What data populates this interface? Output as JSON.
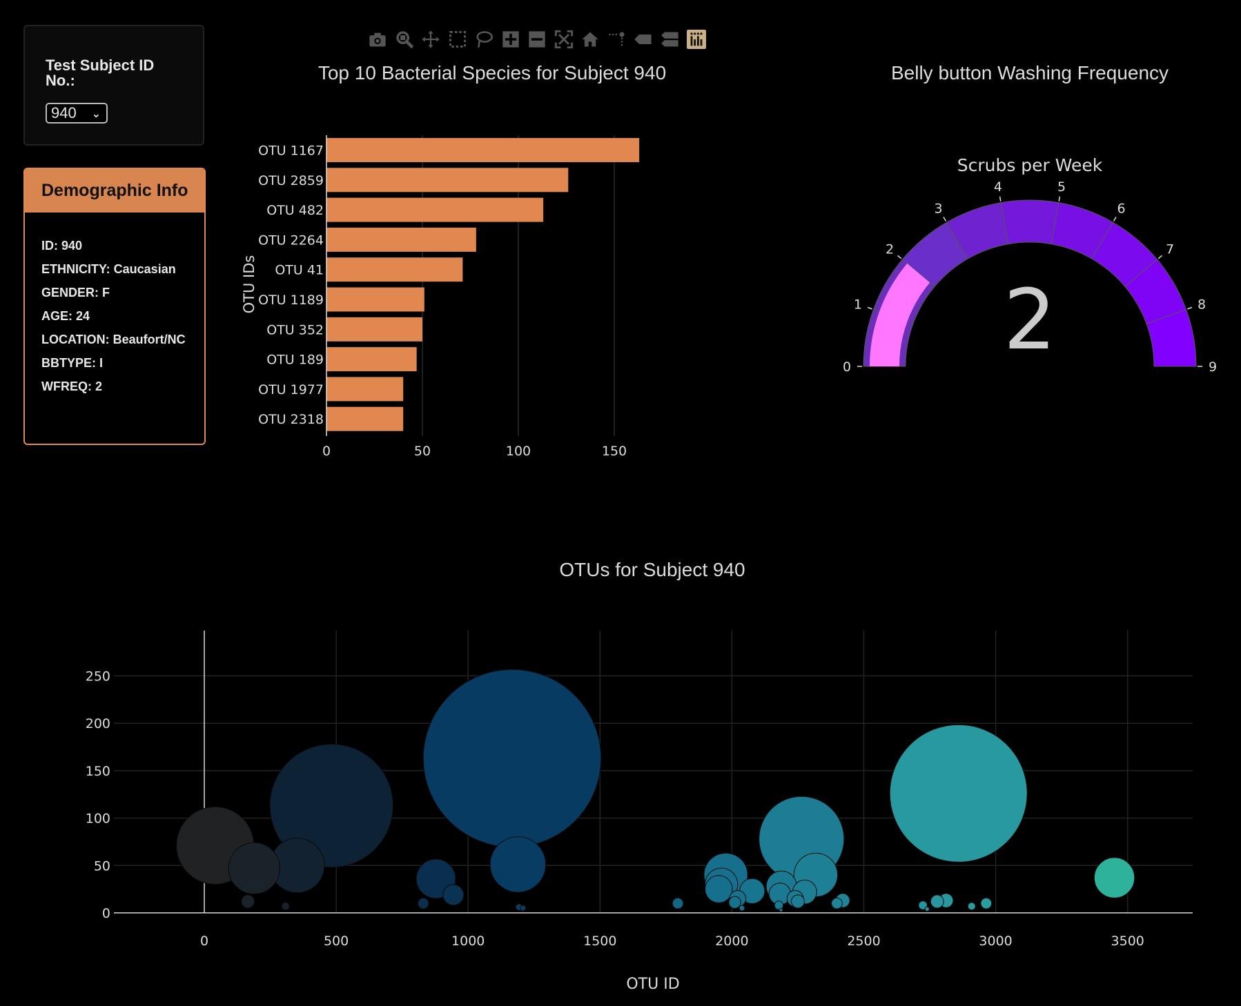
{
  "selector": {
    "label": "Test Subject ID No.:",
    "selected_value": "940"
  },
  "demographic": {
    "title": "Demographic Info",
    "items": [
      "ID: 940",
      "ETHNICITY: Caucasian",
      "GENDER: F",
      "AGE: 24",
      "LOCATION: Beaufort/NC",
      "BBTYPE: I",
      "WFREQ: 2"
    ]
  },
  "toolbar": {
    "icons": [
      "camera-icon",
      "zoom-icon",
      "pan-icon",
      "box-select-icon",
      "lasso-icon",
      "zoom-in-icon",
      "zoom-out-icon",
      "autoscale-icon",
      "home-icon",
      "spike-lines-icon",
      "hover-closest-icon",
      "hover-compare-icon",
      "plotly-logo-icon"
    ]
  },
  "chart_data": [
    {
      "type": "bar",
      "orientation": "horizontal",
      "title": "Top 10 Bacterial Species for Subject 940",
      "xlabel": "",
      "ylabel": "OTU IDs",
      "categories": [
        "OTU 1167",
        "OTU 2859",
        "OTU 482",
        "OTU 2264",
        "OTU 41",
        "OTU 1189",
        "OTU 352",
        "OTU 189",
        "OTU 1977",
        "OTU 2318"
      ],
      "values": [
        163,
        126,
        113,
        78,
        71,
        51,
        50,
        47,
        40,
        40
      ],
      "xlim": [
        0,
        170
      ],
      "xticks": [
        0,
        50,
        100,
        150
      ],
      "bar_color": "#e0884f",
      "grid": true
    },
    {
      "type": "gauge",
      "title": "Belly button Washing Frequency",
      "subtitle": "Scrubs per Week",
      "value": 2,
      "range": [
        0,
        9
      ],
      "ticks": [
        0,
        1,
        2,
        3,
        4,
        5,
        6,
        7,
        8,
        9
      ],
      "bar_color": "#ff77ff",
      "step_colors": [
        "#6a2fb8",
        "#6a2fb8",
        "#6a2fc8",
        "#6e22d0",
        "#7419dc",
        "#7810e6",
        "#7c0aee",
        "#7f04f5",
        "#8200ff"
      ]
    },
    {
      "type": "scatter",
      "mode": "bubble",
      "title": "OTUs for Subject 940",
      "xlabel": "OTU ID",
      "ylabel": "",
      "xlim": [
        -350,
        3750
      ],
      "ylim": [
        0,
        290
      ],
      "xticks": [
        0,
        500,
        1000,
        1500,
        2000,
        2500,
        3000,
        3500
      ],
      "yticks": [
        0,
        50,
        100,
        150,
        200,
        250
      ],
      "grid": true,
      "colorscale": "Earth",
      "points": [
        {
          "x": 41,
          "y": 71
        },
        {
          "x": 189,
          "y": 47
        },
        {
          "x": 352,
          "y": 50
        },
        {
          "x": 482,
          "y": 113
        },
        {
          "x": 165,
          "y": 12
        },
        {
          "x": 308,
          "y": 7
        },
        {
          "x": 830,
          "y": 10
        },
        {
          "x": 878,
          "y": 36
        },
        {
          "x": 944,
          "y": 19
        },
        {
          "x": 1167,
          "y": 163
        },
        {
          "x": 1189,
          "y": 51
        },
        {
          "x": 1193,
          "y": 6
        },
        {
          "x": 1208,
          "y": 5
        },
        {
          "x": 1795,
          "y": 10
        },
        {
          "x": 1977,
          "y": 40
        },
        {
          "x": 1960,
          "y": 30
        },
        {
          "x": 1950,
          "y": 25
        },
        {
          "x": 2011,
          "y": 11
        },
        {
          "x": 2022,
          "y": 15
        },
        {
          "x": 2038,
          "y": 5
        },
        {
          "x": 2077,
          "y": 23
        },
        {
          "x": 2178,
          "y": 8
        },
        {
          "x": 2186,
          "y": 3
        },
        {
          "x": 2188,
          "y": 28
        },
        {
          "x": 2182,
          "y": 20
        },
        {
          "x": 2240,
          "y": 15
        },
        {
          "x": 2250,
          "y": 12
        },
        {
          "x": 2264,
          "y": 78
        },
        {
          "x": 2318,
          "y": 40
        },
        {
          "x": 2276,
          "y": 22
        },
        {
          "x": 2398,
          "y": 10
        },
        {
          "x": 2420,
          "y": 13
        },
        {
          "x": 2724,
          "y": 8
        },
        {
          "x": 2740,
          "y": 4
        },
        {
          "x": 2778,
          "y": 12
        },
        {
          "x": 2812,
          "y": 13
        },
        {
          "x": 2859,
          "y": 126
        },
        {
          "x": 2909,
          "y": 7
        },
        {
          "x": 2964,
          "y": 10
        },
        {
          "x": 3450,
          "y": 37
        }
      ]
    }
  ]
}
